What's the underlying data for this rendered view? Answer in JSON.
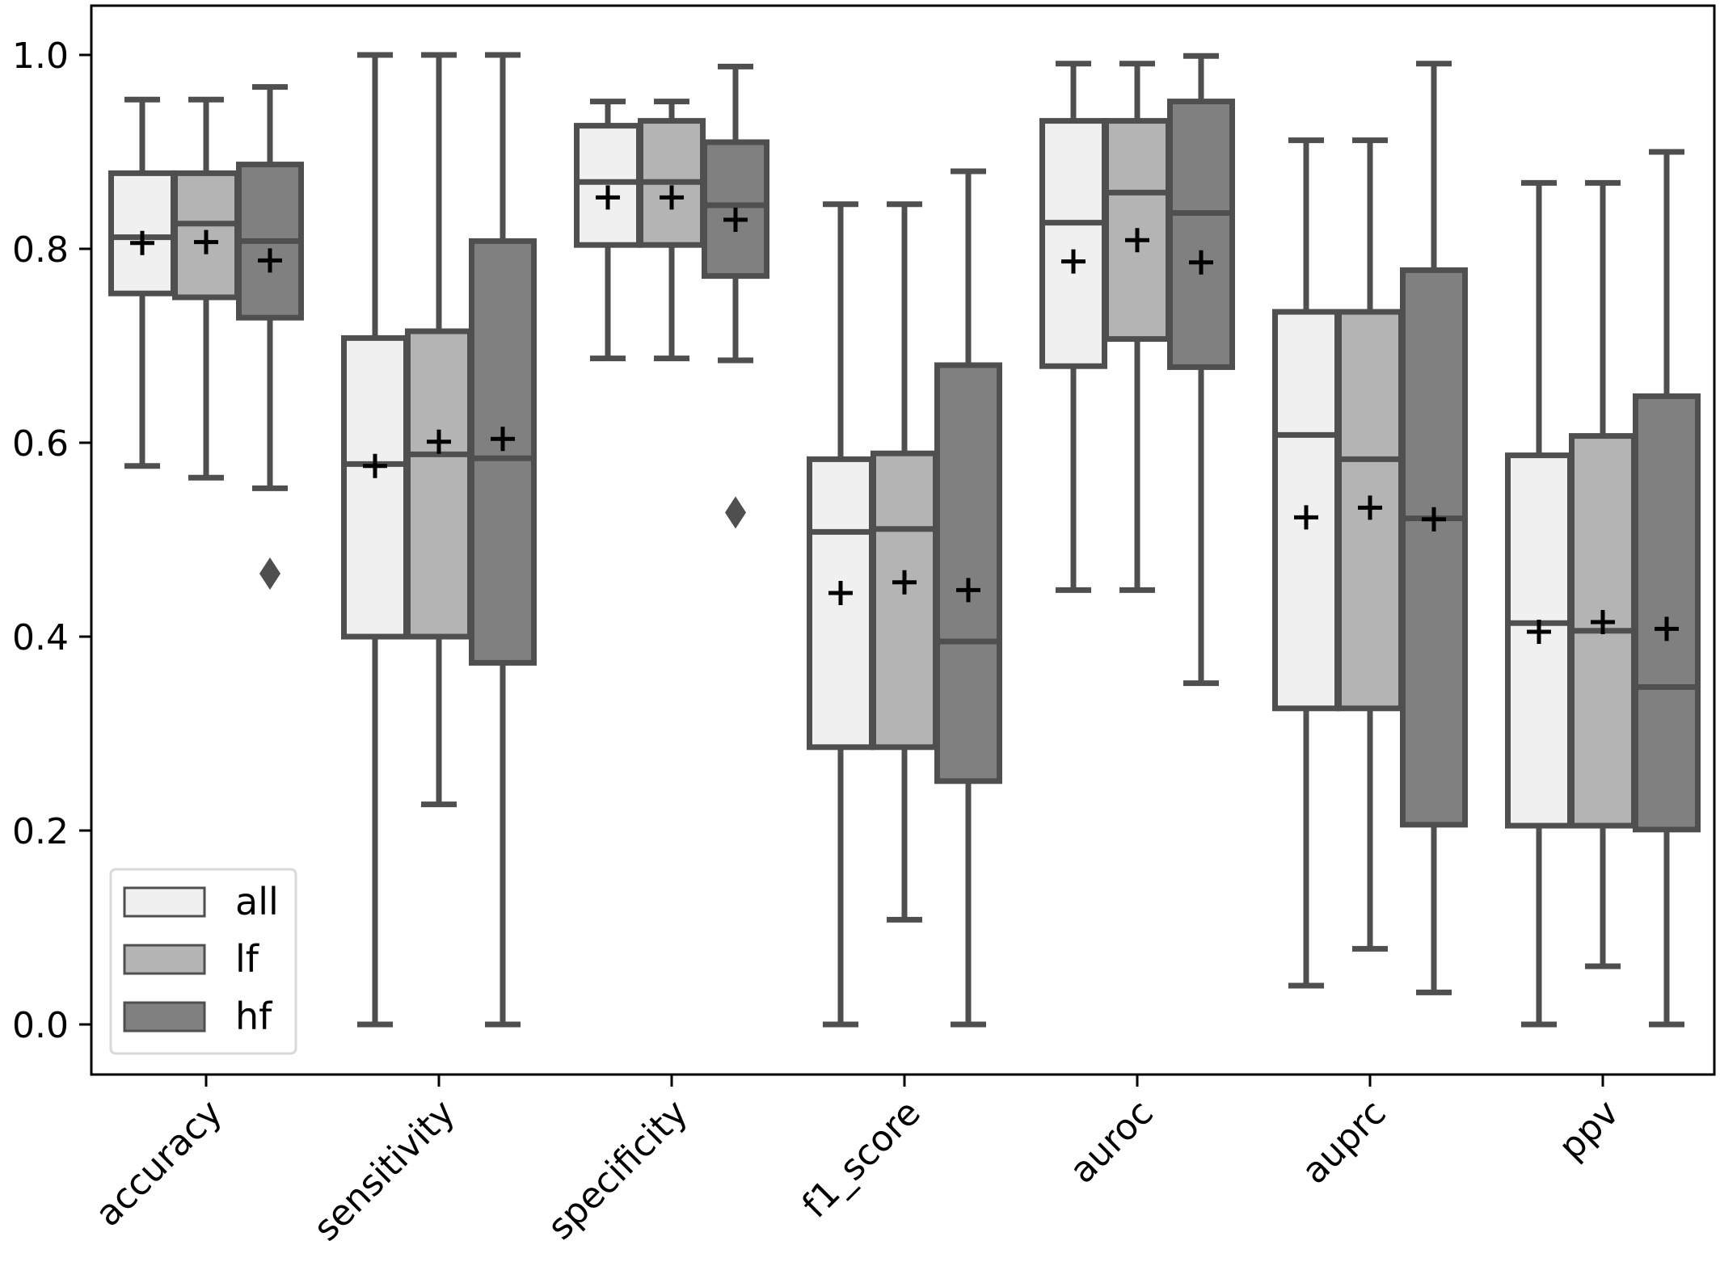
{
  "chart_data": {
    "type": "box",
    "title": "",
    "xlabel": "",
    "ylabel": "",
    "ylim": [
      -0.05,
      1.05
    ],
    "yticks": [
      "0.0",
      "0.2",
      "0.4",
      "0.6",
      "0.8",
      "1.0"
    ],
    "ytick_values": [
      0.0,
      0.2,
      0.4,
      0.6,
      0.8,
      1.0
    ],
    "grid": false,
    "categories": [
      "accuracy",
      "sensitivity",
      "specificity",
      "f1_score",
      "auroc",
      "auprc",
      "ppv"
    ],
    "legend": {
      "placement": "lower-left",
      "entries": [
        "all",
        "lf",
        "hf"
      ]
    },
    "series": [
      {
        "name": "all",
        "color": "#f0f0f0",
        "boxes": [
          {
            "whislo": 0.576,
            "q1": 0.754,
            "med": 0.812,
            "q3": 0.878,
            "whishi": 0.954,
            "mean": 0.806,
            "fliers": []
          },
          {
            "whislo": 0.0,
            "q1": 0.4,
            "med": 0.578,
            "q3": 0.708,
            "whishi": 1.0,
            "mean": 0.576,
            "fliers": []
          },
          {
            "whislo": 0.687,
            "q1": 0.804,
            "med": 0.869,
            "q3": 0.927,
            "whishi": 0.952,
            "mean": 0.853,
            "fliers": []
          },
          {
            "whislo": 0.0,
            "q1": 0.286,
            "med": 0.508,
            "q3": 0.583,
            "whishi": 0.846,
            "mean": 0.445,
            "fliers": []
          },
          {
            "whislo": 0.448,
            "q1": 0.679,
            "med": 0.827,
            "q3": 0.932,
            "whishi": 0.991,
            "mean": 0.787,
            "fliers": []
          },
          {
            "whislo": 0.04,
            "q1": 0.326,
            "med": 0.608,
            "q3": 0.735,
            "whishi": 0.912,
            "mean": 0.523,
            "fliers": []
          },
          {
            "whislo": 0.0,
            "q1": 0.205,
            "med": 0.414,
            "q3": 0.587,
            "whishi": 0.868,
            "mean": 0.405,
            "fliers": []
          }
        ]
      },
      {
        "name": "lf",
        "color": "#b4b4b4",
        "boxes": [
          {
            "whislo": 0.564,
            "q1": 0.75,
            "med": 0.826,
            "q3": 0.878,
            "whishi": 0.954,
            "mean": 0.807,
            "fliers": []
          },
          {
            "whislo": 0.227,
            "q1": 0.4,
            "med": 0.588,
            "q3": 0.715,
            "whishi": 1.0,
            "mean": 0.601,
            "fliers": []
          },
          {
            "whislo": 0.687,
            "q1": 0.804,
            "med": 0.869,
            "q3": 0.932,
            "whishi": 0.952,
            "mean": 0.853,
            "fliers": []
          },
          {
            "whislo": 0.108,
            "q1": 0.286,
            "med": 0.511,
            "q3": 0.589,
            "whishi": 0.846,
            "mean": 0.456,
            "fliers": []
          },
          {
            "whislo": 0.448,
            "q1": 0.707,
            "med": 0.858,
            "q3": 0.932,
            "whishi": 0.991,
            "mean": 0.809,
            "fliers": []
          },
          {
            "whislo": 0.078,
            "q1": 0.326,
            "med": 0.583,
            "q3": 0.735,
            "whishi": 0.912,
            "mean": 0.533,
            "fliers": []
          },
          {
            "whislo": 0.06,
            "q1": 0.205,
            "med": 0.406,
            "q3": 0.607,
            "whishi": 0.868,
            "mean": 0.415,
            "fliers": []
          }
        ]
      },
      {
        "name": "hf",
        "color": "#808080",
        "boxes": [
          {
            "whislo": 0.553,
            "q1": 0.729,
            "med": 0.808,
            "q3": 0.887,
            "whishi": 0.967,
            "mean": 0.788,
            "fliers": [
              0.465
            ]
          },
          {
            "whislo": 0.0,
            "q1": 0.373,
            "med": 0.584,
            "q3": 0.808,
            "whishi": 1.0,
            "mean": 0.604,
            "fliers": []
          },
          {
            "whislo": 0.685,
            "q1": 0.772,
            "med": 0.845,
            "q3": 0.91,
            "whishi": 0.988,
            "mean": 0.83,
            "fliers": [
              0.528
            ]
          },
          {
            "whislo": 0.0,
            "q1": 0.251,
            "med": 0.395,
            "q3": 0.68,
            "whishi": 0.88,
            "mean": 0.448,
            "fliers": []
          },
          {
            "whislo": 0.352,
            "q1": 0.678,
            "med": 0.837,
            "q3": 0.952,
            "whishi": 0.999,
            "mean": 0.786,
            "fliers": []
          },
          {
            "whislo": 0.033,
            "q1": 0.206,
            "med": 0.522,
            "q3": 0.778,
            "whishi": 0.991,
            "mean": 0.521,
            "fliers": []
          },
          {
            "whislo": 0.0,
            "q1": 0.201,
            "med": 0.348,
            "q3": 0.648,
            "whishi": 0.9,
            "mean": 0.408,
            "fliers": []
          }
        ]
      }
    ],
    "colors": {
      "edge": "#4f4f4f",
      "mean_marker": "#000000",
      "axis": "#000000",
      "legend_frame": "#d9d9d9"
    }
  }
}
